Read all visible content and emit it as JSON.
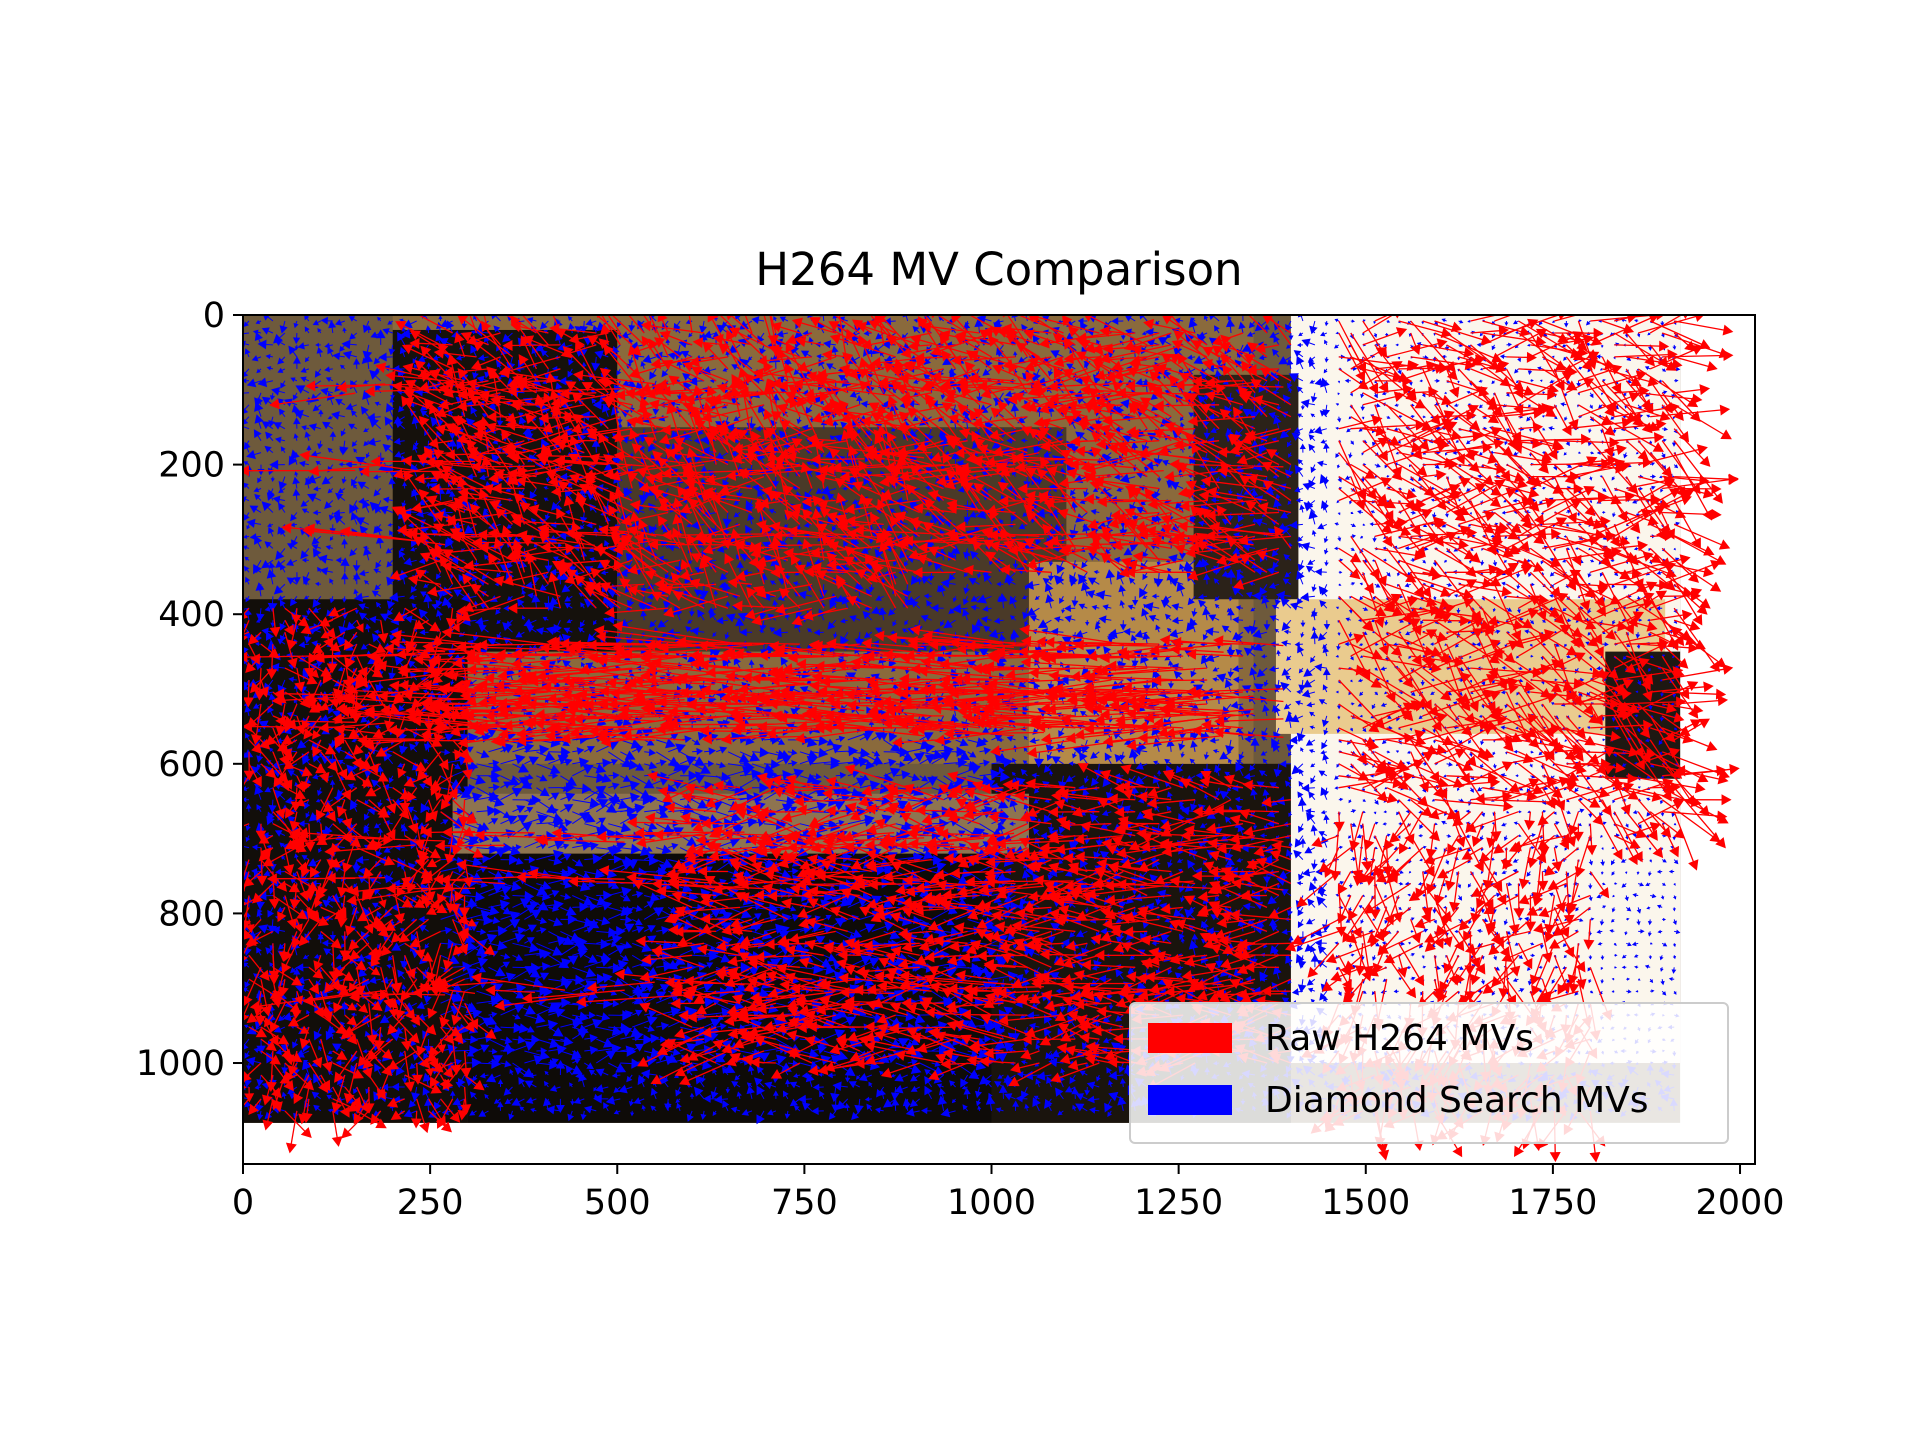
{
  "chart_data": {
    "type": "quiver",
    "title": "H264 MV Comparison",
    "xlabel": "",
    "ylabel": "",
    "xlim": [
      0,
      2020
    ],
    "ylim": [
      1135,
      0
    ],
    "y_inverted": true,
    "x_ticks": [
      0,
      250,
      500,
      750,
      1000,
      1250,
      1500,
      1750,
      2000
    ],
    "x_tick_labels": [
      "0",
      "250",
      "500",
      "750",
      "1000",
      "1250",
      "1500",
      "1750",
      "2000"
    ],
    "y_ticks": [
      0,
      200,
      400,
      600,
      800,
      1000
    ],
    "y_tick_labels": [
      "0",
      "200",
      "400",
      "600",
      "800",
      "1000"
    ],
    "grid": false,
    "legend_position": "lower-right",
    "background_image": {
      "extent_x": [
        0,
        1920
      ],
      "extent_y": [
        0,
        1080
      ],
      "regions": [
        {
          "x": [
            0,
            1920
          ],
          "y": [
            0,
            1080
          ],
          "color": "#6e5a3c"
        },
        {
          "x": [
            200,
            1350
          ],
          "y": [
            0,
            600
          ],
          "color": "#8a6a3c"
        },
        {
          "x": [
            200,
            500
          ],
          "y": [
            20,
            450
          ],
          "color": "#15110c"
        },
        {
          "x": [
            500,
            1100
          ],
          "y": [
            150,
            450
          ],
          "color": "#4a3a28"
        },
        {
          "x": [
            0,
            300
          ],
          "y": [
            380,
            1080
          ],
          "color": "#120e0a"
        },
        {
          "x": [
            300,
            1000
          ],
          "y": [
            720,
            1080
          ],
          "color": "#0e0b08"
        },
        {
          "x": [
            1000,
            1400
          ],
          "y": [
            600,
            1080
          ],
          "color": "#1a140d"
        },
        {
          "x": [
            280,
            1050
          ],
          "y": [
            640,
            720
          ],
          "color": "#8e7450"
        },
        {
          "x": [
            1050,
            1330
          ],
          "y": [
            330,
            600
          ],
          "color": "#b58a48"
        },
        {
          "x": [
            1400,
            1920
          ],
          "y": [
            0,
            1000
          ],
          "color": "#fbf6ec"
        },
        {
          "x": [
            1380,
            1900
          ],
          "y": [
            380,
            560
          ],
          "color": "#eacb8e"
        },
        {
          "x": [
            1270,
            1410
          ],
          "y": [
            80,
            380
          ],
          "color": "#2b2219"
        },
        {
          "x": [
            1820,
            1920
          ],
          "y": [
            450,
            620
          ],
          "color": "#1e1812"
        }
      ]
    },
    "series": [
      {
        "name": "Raw H264 MVs",
        "color": "#ff0000",
        "field": {
          "grid_step": 16,
          "seed": 7,
          "dense_rows_y": [
            100,
            200,
            300,
            450,
            500,
            520,
            540,
            560,
            700,
            760,
            900
          ],
          "zones": [
            {
              "x": [
                250,
                900
              ],
              "y": [
                20,
                400
              ],
              "mag": 75,
              "angle": 210,
              "spread": 0.9
            },
            {
              "x": [
                900,
                1400
              ],
              "y": [
                20,
                350
              ],
              "mag": 80,
              "angle": 200,
              "spread": 0.7
            },
            {
              "x": [
                300,
                1350
              ],
              "y": [
                430,
                560
              ],
              "mag": 140,
              "angle": 180,
              "spread": 0.15
            },
            {
              "x": [
                1450,
                1920
              ],
              "y": [
                0,
                700
              ],
              "mag": 85,
              "angle": 20,
              "spread": 0.9
            },
            {
              "x": [
                0,
                300
              ],
              "y": [
                380,
                1080
              ],
              "mag": 45,
              "angle": 90,
              "spread": 1.2
            },
            {
              "x": [
                600,
                1400
              ],
              "y": [
                620,
                1000
              ],
              "mag": 70,
              "angle": 180,
              "spread": 0.5
            },
            {
              "x": [
                1450,
                1800
              ],
              "y": [
                650,
                1080
              ],
              "mag": 60,
              "angle": 110,
              "spread": 1.0
            }
          ]
        }
      },
      {
        "name": "Diamond Search MVs",
        "color": "#0000ff",
        "field": {
          "grid_step": 16,
          "seed": 11,
          "zones": [
            {
              "x": [
                0,
                1920
              ],
              "y": [
                0,
                1080
              ],
              "mag": 16,
              "angle": 180,
              "spread": 1.6
            },
            {
              "x": [
                250,
                1000
              ],
              "y": [
                560,
                1000
              ],
              "mag": 30,
              "angle": 0,
              "spread": 0.6
            },
            {
              "x": [
                1450,
                1920
              ],
              "y": [
                0,
                1000
              ],
              "mag": 6,
              "angle": 90,
              "spread": 2.0
            }
          ]
        }
      }
    ]
  }
}
